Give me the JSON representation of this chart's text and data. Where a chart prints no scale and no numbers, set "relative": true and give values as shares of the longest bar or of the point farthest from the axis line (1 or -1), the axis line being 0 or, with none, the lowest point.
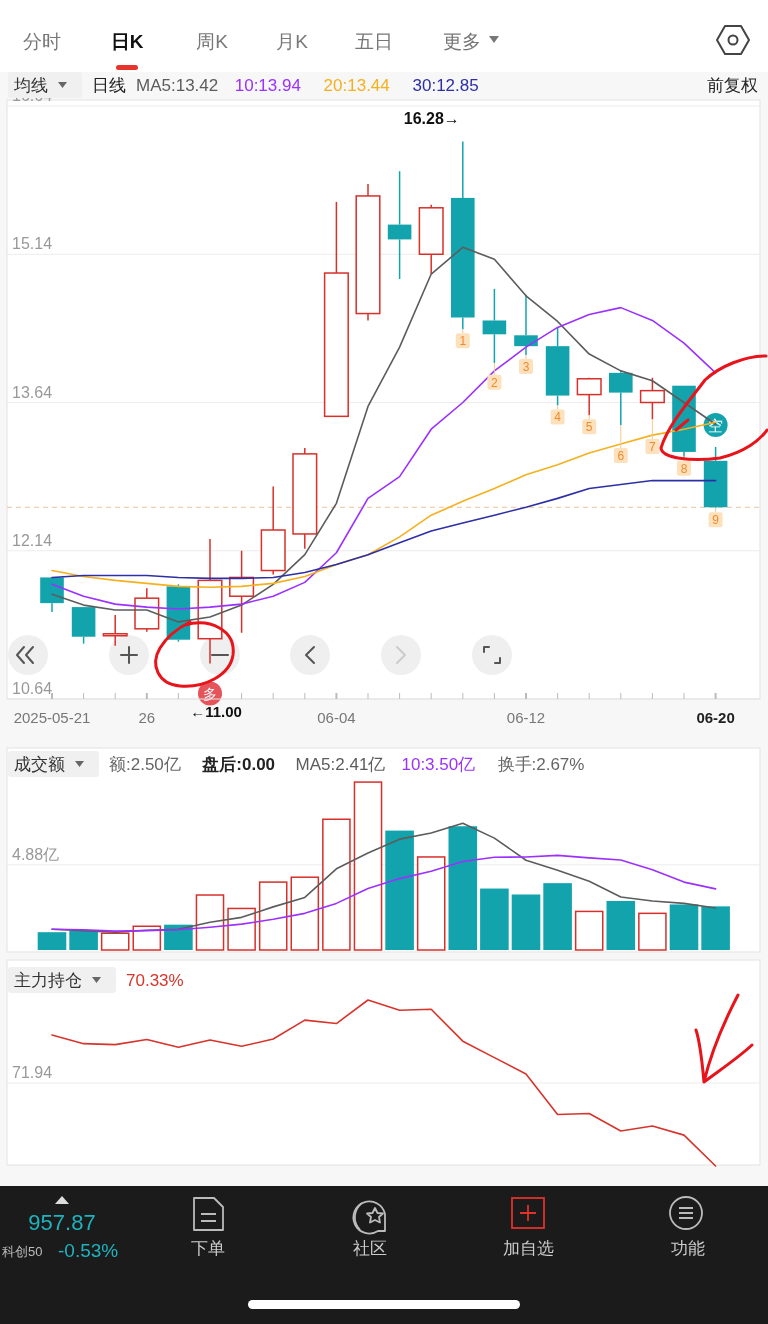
{
  "chart_data": [
    {
      "type": "other",
      "annotations": [
        "分时",
        "日K",
        "周K",
        "月K",
        "五日",
        "更多"
      ]
    },
    {
      "type": "candlestick",
      "legend": "top left",
      "legend_title": "均线",
      "grid": "y",
      "categories": [
        "2025-05-21",
        null,
        null,
        "26",
        null,
        null,
        null,
        null,
        null,
        "06-04",
        null,
        null,
        null,
        null,
        null,
        "06-12",
        null,
        null,
        null,
        null,
        null,
        "06-20"
      ],
      "ylim": [
        10.64,
        16.64
      ],
      "yticks": [
        10.64,
        12.14,
        13.64,
        15.14,
        16.64
      ],
      "ohlc": [
        [
          11.87,
          11.87,
          11.52,
          11.61
        ],
        [
          11.57,
          11.57,
          11.2,
          11.27
        ],
        [
          11.28,
          11.49,
          11.18,
          11.3
        ],
        [
          11.35,
          11.76,
          11.32,
          11.66
        ],
        [
          11.78,
          11.8,
          11.22,
          11.24
        ],
        [
          11.25,
          12.26,
          11.0,
          11.84
        ],
        [
          11.68,
          12.14,
          11.31,
          11.87
        ],
        [
          11.94,
          12.79,
          11.9,
          12.35
        ],
        [
          12.31,
          13.18,
          12.16,
          13.12
        ],
        [
          13.5,
          15.67,
          13.5,
          14.95
        ],
        [
          14.54,
          15.85,
          14.47,
          15.73
        ],
        [
          15.44,
          15.98,
          14.89,
          15.29
        ],
        [
          15.14,
          15.64,
          14.94,
          15.61
        ],
        [
          15.71,
          16.28,
          14.38,
          14.5
        ],
        [
          14.47,
          14.79,
          14.04,
          14.33
        ],
        [
          14.32,
          14.73,
          14.12,
          14.21
        ],
        [
          14.21,
          14.4,
          13.61,
          13.71
        ],
        [
          13.72,
          13.89,
          13.51,
          13.88
        ],
        [
          13.94,
          13.96,
          13.41,
          13.74
        ],
        [
          13.64,
          13.89,
          13.47,
          13.76
        ],
        [
          13.81,
          13.81,
          13.09,
          13.14
        ],
        [
          13.05,
          13.19,
          12.57,
          12.58
        ]
      ],
      "colors": [
        "#13a3ad",
        "#13a3ad",
        "#d7302a",
        "#d7302a",
        "#13a3ad",
        "#d7302a",
        "#d7302a",
        "#d7302a",
        "#d7302a",
        "#d7302a",
        "#d7302a",
        "#13a3ad",
        "#d7302a",
        "#13a3ad",
        "#13a3ad",
        "#13a3ad",
        "#13a3ad",
        "#d7302a",
        "#13a3ad",
        "#d7302a",
        "#13a3ad",
        "#13a3ad"
      ],
      "series": [
        {
          "type": "line",
          "name": "MA5:13.42",
          "color": "#5c5c5c",
          "values": [
            11.7,
            11.59,
            11.54,
            11.54,
            11.42,
            11.47,
            11.59,
            11.8,
            12.1,
            12.62,
            13.6,
            14.2,
            14.94,
            15.21,
            15.09,
            14.72,
            14.46,
            14.13,
            13.96,
            13.86,
            13.64,
            13.42
          ]
        },
        {
          "type": "line",
          "name": "10:13.94",
          "color": "#9b30ff",
          "values": [
            11.8,
            11.68,
            11.6,
            11.57,
            11.55,
            11.57,
            11.6,
            11.68,
            11.82,
            12.12,
            12.67,
            12.89,
            13.37,
            13.64,
            13.96,
            14.2,
            14.4,
            14.53,
            14.6,
            14.47,
            14.24,
            13.94
          ]
        },
        {
          "type": "line",
          "name": "20:13.44",
          "color": "#f5b01e",
          "values": [
            11.94,
            11.88,
            11.84,
            11.81,
            11.78,
            11.77,
            11.78,
            11.81,
            11.88,
            12.0,
            12.1,
            12.28,
            12.5,
            12.64,
            12.77,
            12.91,
            13.01,
            13.13,
            13.22,
            13.31,
            13.37,
            13.44
          ]
        },
        {
          "type": "line",
          "name": "30:12.85",
          "color": "#2d2fa6",
          "values": [
            11.87,
            11.89,
            11.89,
            11.89,
            11.87,
            11.86,
            11.86,
            11.87,
            11.92,
            12.0,
            12.1,
            12.22,
            12.34,
            12.42,
            12.5,
            12.58,
            12.67,
            12.77,
            12.81,
            12.85,
            12.85,
            12.85
          ]
        }
      ],
      "ref_lines": [
        {
          "axis": "y",
          "value": 12.58,
          "color": "#e8c49a",
          "line_style": "dashed"
        }
      ],
      "annotations": [
        "日线",
        "前复权",
        "16.28→",
        "←11.00",
        {
          "text": "多",
          "y": 11.0
        },
        {
          "text": "空",
          "y": 13.19
        },
        {
          "text": "1",
          "y": 14.38
        },
        {
          "text": "2",
          "y": 14.04
        },
        {
          "text": "3",
          "y": 14.12
        },
        {
          "text": "4",
          "y": 13.61
        },
        {
          "text": "5",
          "y": 13.51
        },
        {
          "text": "6",
          "y": 13.41
        },
        {
          "text": "7",
          "y": 13.47
        },
        {
          "text": "8",
          "y": 13.09
        },
        {
          "text": "9",
          "y": 12.57
        }
      ]
    },
    {
      "type": "bar",
      "legend": "top left",
      "legend_title": "成交额",
      "grid": "y",
      "tick_labels": "y",
      "categories": [
        null,
        null,
        null,
        null,
        null,
        null,
        null,
        null,
        null,
        null,
        null,
        null,
        null,
        null,
        null,
        null,
        null,
        null,
        null,
        null,
        null,
        null
      ],
      "ylim": [
        0,
        11.4
      ],
      "yticks": [
        {
          "value": 4.88,
          "label": "4.88亿"
        }
      ],
      "series": [
        {
          "type": "bar",
          "colors": [
            "#13a3ad",
            "#13a3ad",
            "#d7302a",
            "#d7302a",
            "#13a3ad",
            "#d7302a",
            "#d7302a",
            "#d7302a",
            "#d7302a",
            "#d7302a",
            "#d7302a",
            "#13a3ad",
            "#d7302a",
            "#13a3ad",
            "#13a3ad",
            "#13a3ad",
            "#13a3ad",
            "#d7302a",
            "#13a3ad",
            "#d7302a",
            "#13a3ad",
            "#13a3ad"
          ],
          "values": [
            1.02,
            1.11,
            0.96,
            1.36,
            1.45,
            3.15,
            2.38,
            3.89,
            4.17,
            7.49,
            9.62,
            6.84,
            5.33,
            7.09,
            3.52,
            3.18,
            3.83,
            2.21,
            2.81,
            2.1,
            2.61,
            2.5
          ]
        },
        {
          "type": "line",
          "name": "MA5:2.41亿",
          "color": "#5c5c5c",
          "values": [
            1.19,
            1.11,
            1.02,
            1.13,
            1.19,
            1.59,
            1.87,
            2.47,
            3.01,
            4.65,
            5.56,
            6.35,
            6.7,
            7.26,
            6.41,
            5.14,
            4.57,
            3.94,
            3.04,
            2.81,
            2.67,
            2.41
          ]
        },
        {
          "type": "line",
          "name": "10:3.50亿",
          "color": "#9b30ff",
          "values": [
            1.19,
            1.16,
            1.08,
            1.11,
            1.16,
            1.3,
            1.48,
            1.76,
            2.1,
            2.67,
            3.52,
            4.09,
            4.51,
            5.07,
            5.31,
            5.33,
            5.42,
            5.28,
            5.16,
            4.6,
            3.89,
            3.5
          ]
        }
      ],
      "annotations": [
        "额:2.50亿",
        "盘后:0.00",
        "换手:2.67%"
      ]
    },
    {
      "type": "line",
      "legend": "top left",
      "legend_title": "主力持仓",
      "relative": true,
      "categories": [
        null,
        null,
        null,
        null,
        null,
        null,
        null,
        null,
        null,
        null,
        null,
        null,
        null,
        null,
        null,
        null,
        null,
        null,
        null,
        null,
        null,
        null
      ],
      "ref_lines": [
        {
          "axis": "y",
          "value": 0.5,
          "color": "#ececec"
        }
      ],
      "annotations": [
        {
          "text": "71.94",
          "y": 0.5
        }
      ],
      "series": [
        {
          "name": "70.33%",
          "color": "#d7342b",
          "values": [
            0.789,
            0.737,
            0.731,
            0.762,
            0.715,
            0.759,
            0.721,
            0.765,
            0.879,
            0.858,
            1,
            0.938,
            0.944,
            0.752,
            0.653,
            0.554,
            0.31,
            0.316,
            0.211,
            0.241,
            0.186,
            0
          ]
        }
      ]
    },
    {
      "type": "other",
      "annotations": [
        "957.87",
        "科创50",
        "-0.53%",
        "下单",
        "社区",
        "加自选",
        "功能"
      ]
    }
  ]
}
